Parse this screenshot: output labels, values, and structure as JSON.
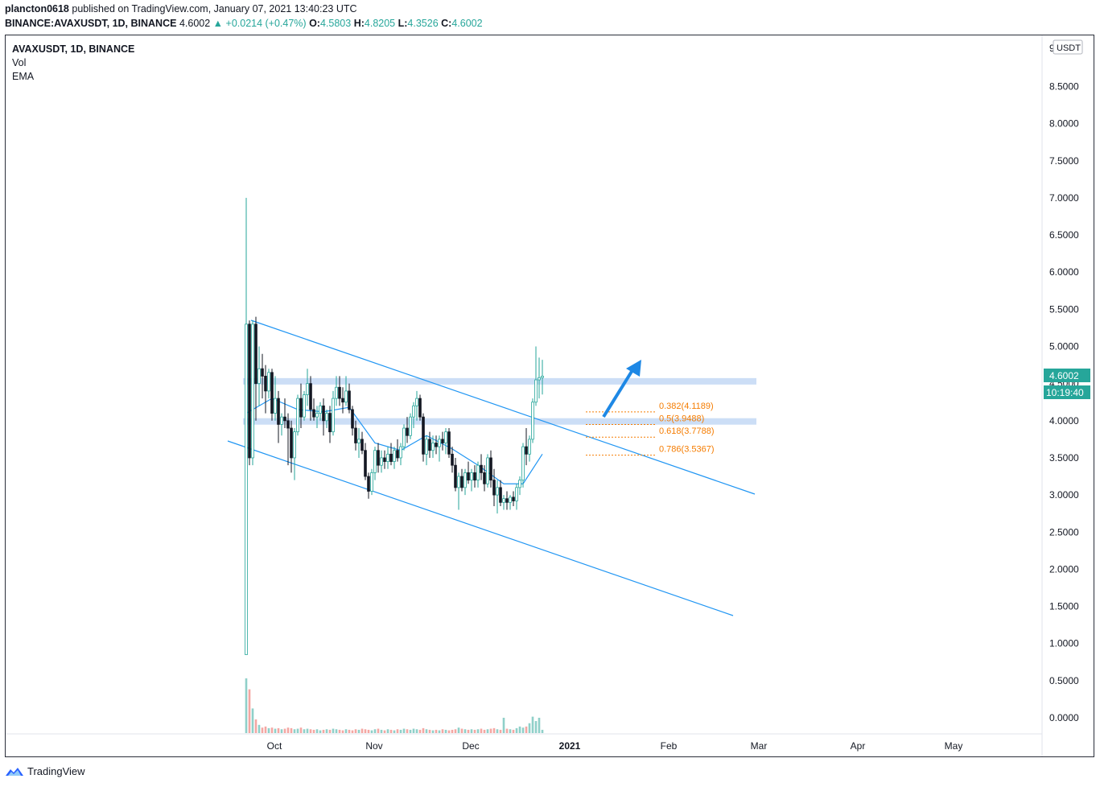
{
  "header": {
    "publisher": "plancton0618",
    "published_text": "published on TradingView.com, January 07, 2021 13:40:23 UTC",
    "symbol_line": "BINANCE:AVAXUSDT, 1D, BINANCE",
    "symbol": "BINANCE:AVAXUSDT, 1D, BINANCE",
    "last": "4.6002",
    "change": "+0.0214 (+0.47%)",
    "o_label": "O:",
    "o": "4.5803",
    "h_label": "H:",
    "h": "4.8205",
    "l_label": "L:",
    "l": "4.3526",
    "c_label": "C:",
    "c": "4.6002"
  },
  "legend": {
    "title": "AVAXUSDT, 1D, BINANCE",
    "vol": "Vol",
    "ema": "EMA"
  },
  "footer": {
    "brand": "TradingView"
  },
  "colors": {
    "up": "#26a69a",
    "down": "#131722",
    "ema": "#2196f3",
    "channel": "#2196f3",
    "zone": "#bbd3f3",
    "fib": "#f57c00",
    "price_tag": "#26a69a",
    "vol_up": "#8fd0c9",
    "vol_down": "#f4a7a3"
  },
  "chart_data": {
    "type": "candlestick",
    "x_ticks": [
      "Oct",
      "Nov",
      "Dec",
      "2021",
      "Feb",
      "Mar",
      "Apr",
      "May"
    ],
    "y_ticks": [
      "9",
      "8.5000",
      "8.0000",
      "7.5000",
      "7.0000",
      "6.5000",
      "6.0000",
      "5.5000",
      "5.0000",
      "4.5000",
      "4.0000",
      "3.5000",
      "3.0000",
      "2.5000",
      "2.0000",
      "1.5000",
      "1.0000",
      "0.5000",
      "0.0000"
    ],
    "ylim": [
      -0.2,
      9.2
    ],
    "currency_label": "USDT",
    "last_price": "4.6002",
    "countdown": "10:19:40",
    "fib_levels": [
      {
        "label": "0.382(4.1189)",
        "value": 4.1189
      },
      {
        "label": "0.5(3.9488)",
        "value": 3.9488
      },
      {
        "label": "0.618(3.7788)",
        "value": 3.7788
      },
      {
        "label": "0.786(3.5367)",
        "value": 3.5367
      }
    ],
    "zones": [
      4.53,
      3.99
    ],
    "candles": [
      [
        0.85,
        7.0,
        0.85,
        5.3
      ],
      [
        5.3,
        5.35,
        3.4,
        3.5
      ],
      [
        3.5,
        5.35,
        3.4,
        5.3
      ],
      [
        5.3,
        5.4,
        4.0,
        4.5
      ],
      [
        4.5,
        5.0,
        4.2,
        4.7
      ],
      [
        4.7,
        4.9,
        4.3,
        4.6
      ],
      [
        4.6,
        4.75,
        4.1,
        4.4
      ],
      [
        4.4,
        4.7,
        4.3,
        4.65
      ],
      [
        4.65,
        4.7,
        4.0,
        4.1
      ],
      [
        4.1,
        4.6,
        4.0,
        4.3
      ],
      [
        4.3,
        4.4,
        3.7,
        3.95
      ],
      [
        3.95,
        4.1,
        3.8,
        4.05
      ],
      [
        4.05,
        4.3,
        3.9,
        4.0
      ],
      [
        4.0,
        4.1,
        3.4,
        3.9
      ],
      [
        3.9,
        4.0,
        3.3,
        3.5
      ],
      [
        3.5,
        3.9,
        3.2,
        3.85
      ],
      [
        3.85,
        4.35,
        3.8,
        4.3
      ],
      [
        4.3,
        4.5,
        3.9,
        4.05
      ],
      [
        4.05,
        4.4,
        4.0,
        4.35
      ],
      [
        4.35,
        4.7,
        4.2,
        4.5
      ],
      [
        4.5,
        4.6,
        4.0,
        4.15
      ],
      [
        4.15,
        4.3,
        4.0,
        4.05
      ],
      [
        4.05,
        4.2,
        3.9,
        4.1
      ],
      [
        4.1,
        4.25,
        4.0,
        4.2
      ],
      [
        4.2,
        4.3,
        3.8,
        4.0
      ],
      [
        4.0,
        4.15,
        3.9,
        4.1
      ],
      [
        4.1,
        4.2,
        3.7,
        3.85
      ],
      [
        3.85,
        4.4,
        3.8,
        4.3
      ],
      [
        4.3,
        4.6,
        4.2,
        4.45
      ],
      [
        4.45,
        4.6,
        4.2,
        4.3
      ],
      [
        4.3,
        4.45,
        4.1,
        4.25
      ],
      [
        4.25,
        4.6,
        4.2,
        4.4
      ],
      [
        4.4,
        4.5,
        4.1,
        4.15
      ],
      [
        4.15,
        4.2,
        3.8,
        3.9
      ],
      [
        3.9,
        4.0,
        3.6,
        3.7
      ],
      [
        3.7,
        3.9,
        3.5,
        3.75
      ],
      [
        3.75,
        3.85,
        3.55,
        3.6
      ],
      [
        3.6,
        3.7,
        3.2,
        3.25
      ],
      [
        3.25,
        3.3,
        2.95,
        3.05
      ],
      [
        3.05,
        3.35,
        3.0,
        3.3
      ],
      [
        3.3,
        3.65,
        3.2,
        3.6
      ],
      [
        3.6,
        3.7,
        3.3,
        3.4
      ],
      [
        3.4,
        3.6,
        3.3,
        3.5
      ],
      [
        3.5,
        3.6,
        3.35,
        3.45
      ],
      [
        3.45,
        3.65,
        3.35,
        3.55
      ],
      [
        3.55,
        3.7,
        3.4,
        3.45
      ],
      [
        3.45,
        3.65,
        3.35,
        3.6
      ],
      [
        3.6,
        3.75,
        3.45,
        3.5
      ],
      [
        3.5,
        3.7,
        3.4,
        3.65
      ],
      [
        3.65,
        3.95,
        3.6,
        3.9
      ],
      [
        3.9,
        4.05,
        3.7,
        3.8
      ],
      [
        3.8,
        4.1,
        3.75,
        4.05
      ],
      [
        4.05,
        4.25,
        3.9,
        4.2
      ],
      [
        4.2,
        4.4,
        4.0,
        4.3
      ],
      [
        4.3,
        4.35,
        4.0,
        4.05
      ],
      [
        4.05,
        4.1,
        3.45,
        3.55
      ],
      [
        3.55,
        3.8,
        3.4,
        3.75
      ],
      [
        3.75,
        3.85,
        3.5,
        3.6
      ],
      [
        3.6,
        3.8,
        3.5,
        3.7
      ],
      [
        3.7,
        3.8,
        3.55,
        3.65
      ],
      [
        3.65,
        3.8,
        3.45,
        3.75
      ],
      [
        3.75,
        3.85,
        3.6,
        3.7
      ],
      [
        3.7,
        3.9,
        3.55,
        3.85
      ],
      [
        3.85,
        3.9,
        3.5,
        3.55
      ],
      [
        3.55,
        3.65,
        3.3,
        3.4
      ],
      [
        3.4,
        3.5,
        3.05,
        3.1
      ],
      [
        3.1,
        3.3,
        2.8,
        3.25
      ],
      [
        3.25,
        3.35,
        3.05,
        3.1
      ],
      [
        3.1,
        3.35,
        3.0,
        3.3
      ],
      [
        3.3,
        3.45,
        3.15,
        3.2
      ],
      [
        3.2,
        3.35,
        3.05,
        3.3
      ],
      [
        3.3,
        3.4,
        3.1,
        3.2
      ],
      [
        3.2,
        3.45,
        3.1,
        3.4
      ],
      [
        3.4,
        3.55,
        3.2,
        3.3
      ],
      [
        3.3,
        3.4,
        3.05,
        3.15
      ],
      [
        3.15,
        3.55,
        3.1,
        3.5
      ],
      [
        3.5,
        3.6,
        3.1,
        3.2
      ],
      [
        3.2,
        3.35,
        2.85,
        3.0
      ],
      [
        3.0,
        3.2,
        2.75,
        3.1
      ],
      [
        3.1,
        3.2,
        2.85,
        2.9
      ],
      [
        2.9,
        3.0,
        2.8,
        2.95
      ],
      [
        2.95,
        3.05,
        2.8,
        2.9
      ],
      [
        2.9,
        3.0,
        2.8,
        2.97
      ],
      [
        2.97,
        3.05,
        2.85,
        2.92
      ],
      [
        2.92,
        3.15,
        2.8,
        3.1
      ],
      [
        3.1,
        3.25,
        3.0,
        3.2
      ],
      [
        3.2,
        3.7,
        3.1,
        3.65
      ],
      [
        3.65,
        3.9,
        3.4,
        3.55
      ],
      [
        3.55,
        3.8,
        3.45,
        3.75
      ],
      [
        3.75,
        4.3,
        3.7,
        4.25
      ],
      [
        4.25,
        5.0,
        4.2,
        4.55
      ],
      [
        4.55,
        4.85,
        4.3,
        4.58
      ],
      [
        4.58,
        4.8205,
        4.3526,
        4.6002
      ]
    ],
    "ema": [
      [
        0,
        4.1
      ],
      [
        8,
        4.3
      ],
      [
        16,
        4.15
      ],
      [
        24,
        4.12
      ],
      [
        32,
        4.18
      ],
      [
        40,
        3.7
      ],
      [
        48,
        3.6
      ],
      [
        56,
        3.8
      ],
      [
        64,
        3.62
      ],
      [
        72,
        3.4
      ],
      [
        80,
        3.15
      ],
      [
        86,
        3.15
      ],
      [
        92,
        3.55
      ]
    ],
    "volume": [
      1.0,
      0.8,
      0.45,
      0.25,
      0.15,
      0.1,
      0.12,
      0.09,
      0.1,
      0.08,
      0.09,
      0.07,
      0.08,
      0.1,
      0.09,
      0.07,
      0.08,
      0.1,
      0.07,
      0.08,
      0.07,
      0.06,
      0.07,
      0.05,
      0.06,
      0.07,
      0.06,
      0.08,
      0.07,
      0.06,
      0.05,
      0.07,
      0.06,
      0.05,
      0.07,
      0.06,
      0.08,
      0.07,
      0.06,
      0.05,
      0.07,
      0.08,
      0.06,
      0.05,
      0.07,
      0.06,
      0.05,
      0.07,
      0.06,
      0.08,
      0.07,
      0.06,
      0.08,
      0.07,
      0.06,
      0.09,
      0.07,
      0.06,
      0.05,
      0.06,
      0.05,
      0.07,
      0.06,
      0.05,
      0.06,
      0.07,
      0.1,
      0.08,
      0.07,
      0.06,
      0.07,
      0.06,
      0.07,
      0.08,
      0.06,
      0.07,
      0.08,
      0.09,
      0.07,
      0.06,
      0.28,
      0.08,
      0.07,
      0.06,
      0.09,
      0.12,
      0.1,
      0.12,
      0.18,
      0.3,
      0.22,
      0.28,
      0.06
    ],
    "volume_ratio": "relative volume, 1.0 = tallest bar"
  }
}
